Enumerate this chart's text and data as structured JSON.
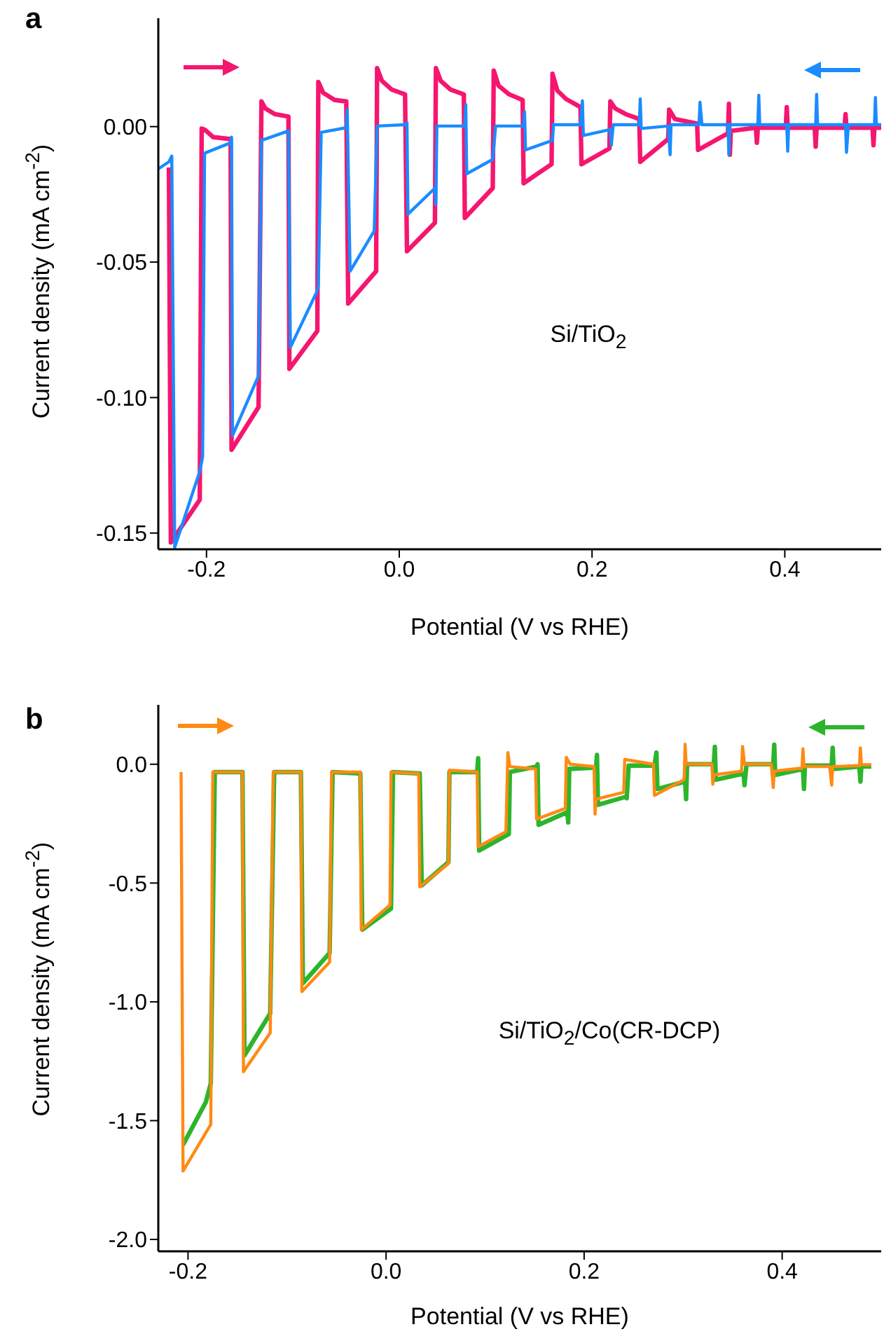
{
  "chart_data": [
    {
      "type": "line",
      "title": "a",
      "xlabel": "Potential (V vs RHE)",
      "ylabel": "Current density (mA cm$^{-2}$)",
      "annotations": [
        "Si/TiO$_{2}$"
      ],
      "xlim": [
        -0.25,
        0.5
      ],
      "ylim": [
        -0.156,
        0.04
      ],
      "xticks": [
        {
          "value": -0.2,
          "label": "-0.2"
        },
        {
          "value": 0,
          "label": "0.0"
        },
        {
          "value": 0.2,
          "label": "0.2"
        },
        {
          "value": 0.4,
          "label": "0.4"
        }
      ],
      "yticks": [
        {
          "value": 0,
          "label": "0.00"
        },
        {
          "value": -0.05,
          "label": "-0.05"
        },
        {
          "value": -0.1,
          "label": "-0.10"
        },
        {
          "value": -0.15,
          "label": "-0.15"
        }
      ],
      "series": [
        {
          "color": "#f5166f",
          "x": [
            -0.239,
            -0.237,
            -0.207,
            -0.205,
            -0.202,
            -0.193,
            -0.175,
            -0.174,
            -0.146,
            -0.143,
            -0.139,
            -0.129,
            -0.115,
            -0.114,
            -0.085,
            -0.084,
            -0.079,
            -0.067,
            -0.055,
            -0.053,
            -0.024,
            -0.023,
            -0.018,
            -0.008,
            0.006,
            0.008,
            0.037,
            0.038,
            0.043,
            0.053,
            0.067,
            0.068,
            0.097,
            0.098,
            0.103,
            0.114,
            0.128,
            0.129,
            0.158,
            0.159,
            0.164,
            0.173,
            0.188,
            0.189,
            0.218,
            0.219,
            0.224,
            0.235,
            0.249,
            0.25,
            0.279,
            0.28,
            0.286,
            0.309,
            0.31,
            0.341,
            0.342,
            0.343,
            0.344,
            0.37,
            0.371,
            0.372,
            0.401,
            0.402,
            0.403,
            0.431,
            0.432,
            0.433,
            0.462,
            0.463,
            0.464,
            0.491,
            0.492,
            0.493,
            0.5
          ],
          "values": [
            -0.0151,
            -0.1535,
            -0.1377,
            -0.0007,
            -0.0011,
            -0.0039,
            -0.0046,
            -0.1193,
            -0.1035,
            0.0093,
            0.0067,
            0.0046,
            0.0037,
            -0.0894,
            -0.0754,
            0.0165,
            0.0125,
            0.0098,
            0.0093,
            -0.0653,
            -0.0534,
            0.0216,
            0.0169,
            0.0137,
            0.0119,
            -0.046,
            -0.0355,
            0.0216,
            0.0169,
            0.0137,
            0.0119,
            -0.0337,
            -0.0227,
            0.0207,
            0.0151,
            0.0119,
            0.0098,
            -0.0209,
            -0.0139,
            0.0195,
            0.0133,
            0.0102,
            0.0072,
            -0.0139,
            -0.0081,
            0.0093,
            0.0067,
            0.0046,
            0.0028,
            -0.013,
            -0.0046,
            0.0063,
            0.0028,
            0.0011,
            -0.0086,
            -0.0025,
            0.0084,
            -0.0104,
            -0.0016,
            -0.0004,
            -0.006,
            -0.0004,
            -0.0004,
            0.0072,
            -0.0004,
            -0.0004,
            -0.0074,
            -0.0004,
            -0.0004,
            0.0046,
            -0.0004,
            -0.0004,
            -0.0069,
            -0.0004,
            -0.0004
          ]
        },
        {
          "color": "#1a8cff",
          "x": [
            -0.25,
            -0.239,
            -0.236,
            -0.233,
            -0.207,
            -0.204,
            -0.202,
            -0.175,
            -0.174,
            -0.173,
            -0.146,
            -0.143,
            -0.115,
            -0.113,
            -0.086,
            -0.084,
            -0.081,
            -0.055,
            -0.054,
            -0.051,
            -0.026,
            -0.023,
            0.006,
            0.008,
            0.009,
            0.037,
            0.038,
            0.039,
            0.068,
            0.069,
            0.07,
            0.097,
            0.1,
            0.129,
            0.13,
            0.131,
            0.159,
            0.16,
            0.188,
            0.19,
            0.191,
            0.219,
            0.22,
            0.222,
            0.249,
            0.25,
            0.251,
            0.279,
            0.281,
            0.282,
            0.311,
            0.312,
            0.314,
            0.341,
            0.342,
            0.343,
            0.372,
            0.373,
            0.374,
            0.402,
            0.403,
            0.404,
            0.432,
            0.433,
            0.434,
            0.463,
            0.464,
            0.466,
            0.493,
            0.494,
            0.495,
            0.5
          ],
          "values": [
            -0.0156,
            -0.013,
            -0.0109,
            -0.1553,
            -0.1272,
            -0.1219,
            -0.0098,
            -0.006,
            -0.0039,
            -0.114,
            -0.092,
            -0.0051,
            -0.0016,
            -0.0815,
            -0.0613,
            -0.0587,
            -0.0021,
            -0.0004,
            0.0063,
            -0.0534,
            -0.0385,
            0.0002,
            0.0007,
            0.0014,
            -0.0323,
            -0.0227,
            -0.0288,
            0.0002,
            0.0002,
            0.0081,
            -0.0174,
            -0.0121,
            0.0002,
            0.0002,
            0.0054,
            -0.0086,
            -0.0051,
            0.0007,
            0.0007,
            0.0095,
            -0.0033,
            -0.0011,
            -0.0069,
            0.0007,
            0.0007,
            0.0102,
            -0.0007,
            0.0002,
            -0.0104,
            0.0007,
            0.0007,
            0.009,
            0.0007,
            0.0007,
            -0.0104,
            0.0007,
            0.0007,
            0.0116,
            0.0007,
            0.0007,
            -0.0091,
            0.0007,
            0.0007,
            0.0119,
            0.0007,
            0.0007,
            -0.0095,
            0.0007,
            0.0007,
            0.0107,
            0.0007,
            0.0007
          ]
        }
      ]
    },
    {
      "type": "line",
      "title": "b",
      "xlabel": "Potential (V vs RHE)",
      "ylabel": "Current density (mA cm$^{-2}$)",
      "annotations": [
        "Si/TiO$_{2}$/Co(CR-DCP)"
      ],
      "xlim": [
        -0.23,
        0.5
      ],
      "ylim": [
        -2.05,
        0.25
      ],
      "xticks": [
        {
          "value": -0.2,
          "label": "-0.2"
        },
        {
          "value": 0,
          "label": "0.0"
        },
        {
          "value": 0.2,
          "label": "0.2"
        },
        {
          "value": 0.4,
          "label": "0.4"
        }
      ],
      "yticks": [
        {
          "value": 0,
          "label": "0.0"
        },
        {
          "value": -0.5,
          "label": "-0.5"
        },
        {
          "value": -1,
          "label": "-1.0"
        },
        {
          "value": -1.5,
          "label": "-1.5"
        },
        {
          "value": -2,
          "label": "-2.0"
        }
      ],
      "series": [
        {
          "color": "#2cb52c",
          "x": [
            -0.205,
            -0.182,
            -0.177,
            -0.173,
            -0.145,
            -0.143,
            -0.117,
            -0.113,
            -0.086,
            -0.084,
            -0.057,
            -0.054,
            -0.026,
            -0.024,
            0.005,
            0.007,
            0.034,
            0.036,
            0.063,
            0.064,
            0.092,
            0.093,
            0.094,
            0.124,
            0.125,
            0.152,
            0.153,
            0.154,
            0.183,
            0.184,
            0.185,
            0.212,
            0.213,
            0.214,
            0.242,
            0.243,
            0.245,
            0.271,
            0.273,
            0.274,
            0.302,
            0.303,
            0.304,
            0.331,
            0.332,
            0.333,
            0.361,
            0.362,
            0.364,
            0.391,
            0.392,
            0.393,
            0.421,
            0.422,
            0.423,
            0.45,
            0.451,
            0.452,
            0.478,
            0.479,
            0.48,
            0.49
          ],
          "values": [
            -1.602,
            -1.422,
            -1.343,
            -0.033,
            -0.033,
            -1.225,
            -1.049,
            -0.033,
            -0.033,
            -0.922,
            -0.794,
            -0.033,
            -0.039,
            -0.696,
            -0.608,
            -0.033,
            -0.039,
            -0.51,
            -0.412,
            -0.033,
            -0.033,
            0.025,
            -0.363,
            -0.294,
            -0.033,
            -0.01,
            0,
            -0.255,
            -0.202,
            -0.245,
            -0.02,
            -0.014,
            0.039,
            -0.171,
            -0.137,
            -0.143,
            -0.006,
            -0.006,
            0.049,
            -0.104,
            -0.073,
            -0.147,
            0,
            0,
            0.073,
            -0.065,
            -0.039,
            -0.088,
            0,
            0,
            0.082,
            -0.045,
            -0.02,
            -0.104,
            -0.006,
            -0.006,
            0.069,
            -0.02,
            -0.01,
            -0.073,
            -0.01,
            -0.01
          ]
        },
        {
          "color": "#ff8a14",
          "x": [
            -0.207,
            -0.205,
            -0.177,
            -0.175,
            -0.145,
            -0.144,
            -0.117,
            -0.114,
            -0.086,
            -0.085,
            -0.057,
            -0.055,
            -0.026,
            -0.025,
            0.004,
            0.005,
            0.033,
            0.034,
            0.063,
            0.064,
            0.092,
            0.093,
            0.121,
            0.123,
            0.125,
            0.151,
            0.152,
            0.181,
            0.182,
            0.186,
            0.21,
            0.211,
            0.212,
            0.24,
            0.241,
            0.27,
            0.271,
            0.301,
            0.302,
            0.303,
            0.329,
            0.33,
            0.331,
            0.359,
            0.36,
            0.362,
            0.389,
            0.391,
            0.392,
            0.42,
            0.421,
            0.422,
            0.448,
            0.45,
            0.451,
            0.478,
            0.479,
            0.48,
            0.49
          ],
          "values": [
            -0.033,
            -1.712,
            -1.516,
            -0.033,
            -0.033,
            -1.294,
            -1.131,
            -0.033,
            -0.033,
            -0.957,
            -0.833,
            -0.033,
            -0.033,
            -0.696,
            -0.592,
            -0.033,
            -0.039,
            -0.516,
            -0.418,
            -0.025,
            -0.033,
            -0.347,
            -0.284,
            0.049,
            -0.01,
            -0.02,
            -0.231,
            -0.186,
            0.029,
            0,
            -0.01,
            -0.21,
            -0.147,
            -0.118,
            0.02,
            0,
            -0.131,
            -0.065,
            0.084,
            0,
            0,
            -0.084,
            -0.045,
            -0.029,
            0.075,
            0,
            0,
            -0.098,
            -0.029,
            -0.016,
            0.065,
            -0.01,
            -0.01,
            -0.088,
            -0.01,
            -0.006,
            0.069,
            -0.002,
            -0.002
          ]
        }
      ]
    }
  ]
}
